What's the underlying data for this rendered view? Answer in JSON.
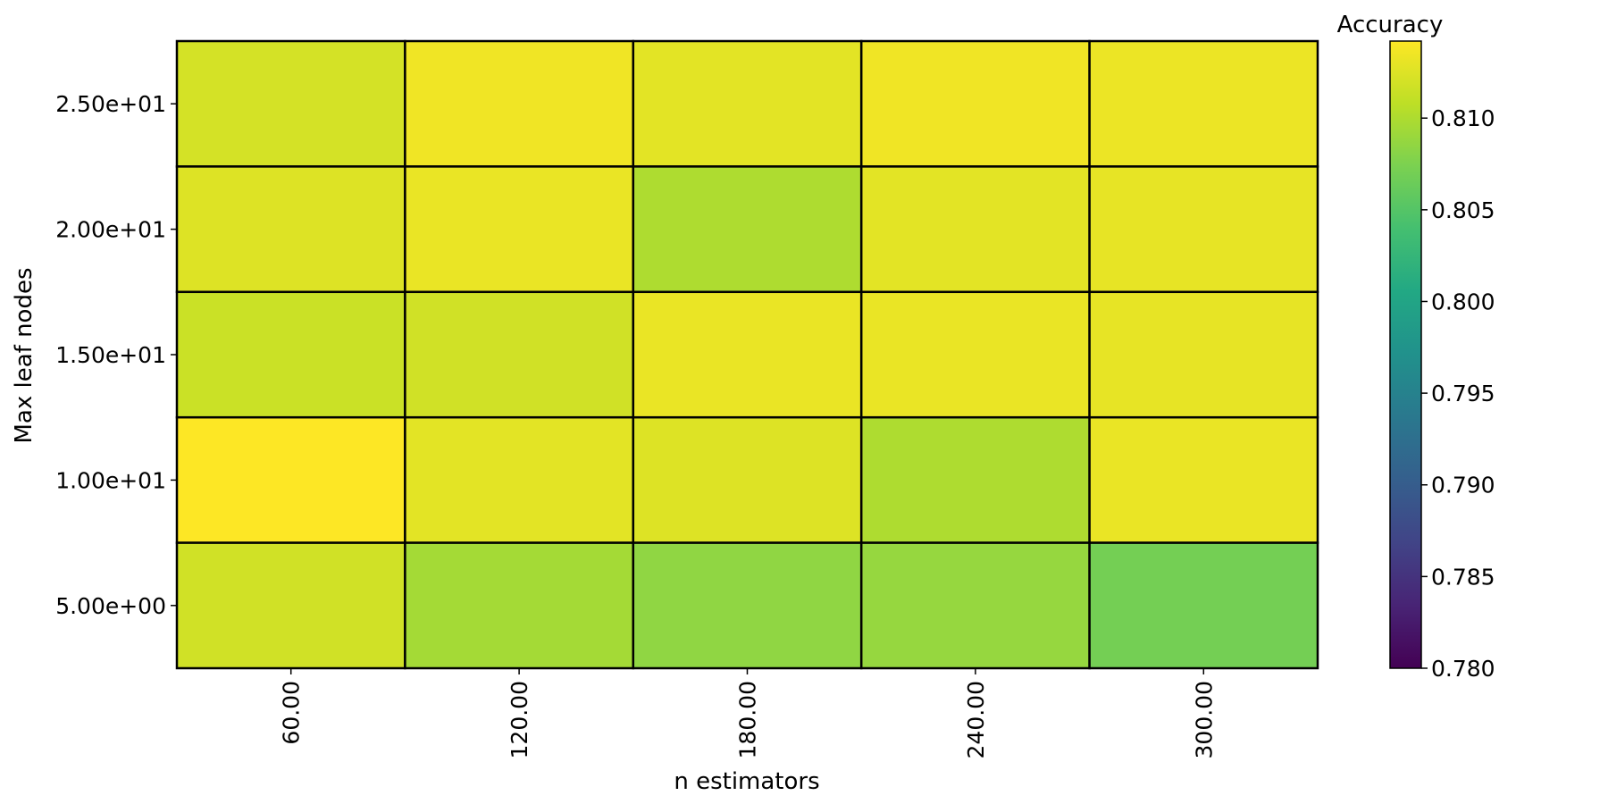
{
  "chart_data": {
    "type": "heatmap",
    "title": "",
    "xlabel": "n estimators",
    "ylabel": "Max leaf nodes",
    "x_categories": [
      "60.00",
      "120.00",
      "180.00",
      "240.00",
      "300.00"
    ],
    "y_categories": [
      "2.50e+01",
      "2.00e+01",
      "1.50e+01",
      "1.00e+01",
      "5.00e+00"
    ],
    "values": [
      [
        0.812,
        0.8135,
        0.8128,
        0.8135,
        0.8133
      ],
      [
        0.8125,
        0.8132,
        0.81,
        0.8128,
        0.813
      ],
      [
        0.8115,
        0.8118,
        0.8132,
        0.8132,
        0.813
      ],
      [
        0.8142,
        0.8128,
        0.8125,
        0.81,
        0.8132
      ],
      [
        0.8118,
        0.8095,
        0.8085,
        0.8088,
        0.807
      ]
    ],
    "colorbar": {
      "title": "Accuracy",
      "min": 0.78,
      "max": 0.8142,
      "ticks": [
        "0.780",
        "0.785",
        "0.790",
        "0.795",
        "0.800",
        "0.805",
        "0.810"
      ],
      "colormap": "viridis"
    },
    "grid": false,
    "cell_border_color": "#000000"
  }
}
